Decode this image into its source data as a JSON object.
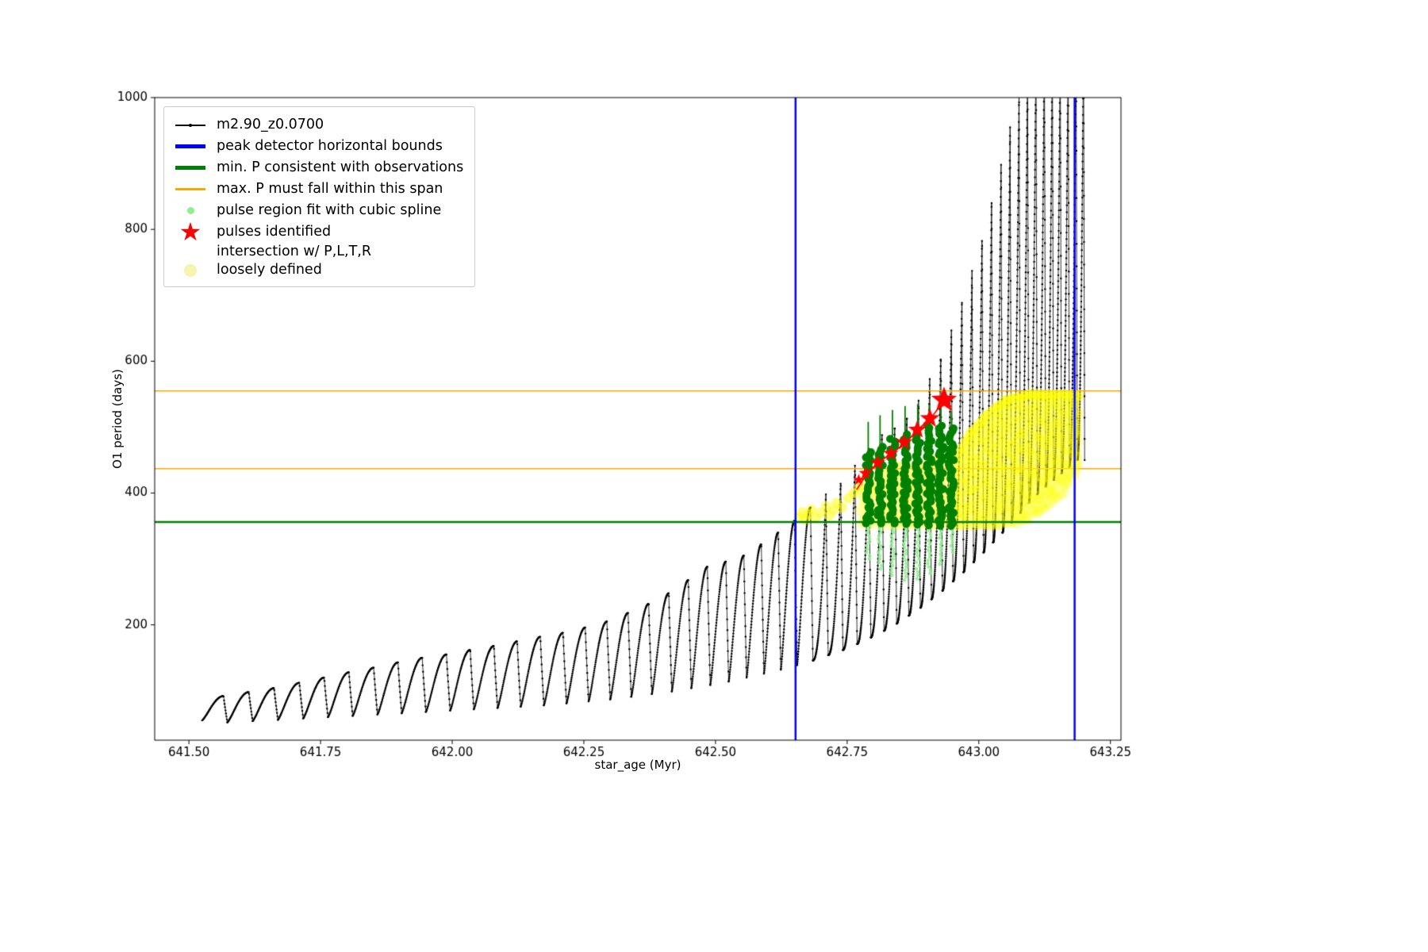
{
  "figure": {
    "background": "#ffffff"
  },
  "chart_data": {
    "type": "line",
    "title": "",
    "xlabel": "star_age (Myr)",
    "ylabel": "O1 period (days)",
    "xlim": [
      641.435,
      643.27
    ],
    "ylim": [
      25,
      1000
    ],
    "grid": false,
    "legend_position": "upper left",
    "x_ticks": [
      {
        "v": 641.5,
        "label": "641.50"
      },
      {
        "v": 641.75,
        "label": "641.75"
      },
      {
        "v": 642.0,
        "label": "642.00"
      },
      {
        "v": 642.25,
        "label": "642.25"
      },
      {
        "v": 642.5,
        "label": "642.50"
      },
      {
        "v": 642.75,
        "label": "642.75"
      },
      {
        "v": 643.0,
        "label": "643.00"
      },
      {
        "v": 643.25,
        "label": "643.25"
      }
    ],
    "y_ticks": [
      {
        "v": 200,
        "label": "200"
      },
      {
        "v": 400,
        "label": "400"
      },
      {
        "v": 600,
        "label": "600"
      },
      {
        "v": 800,
        "label": "800"
      },
      {
        "v": 1000,
        "label": "1000"
      }
    ],
    "legend": [
      {
        "label": "m2.90_z0.0700",
        "marker": "line-dot",
        "color": "#000000"
      },
      {
        "label": "peak detector horizontal bounds",
        "marker": "thick-line",
        "color": "#0000ff"
      },
      {
        "label": "min. P consistent with observations",
        "marker": "thick-line",
        "color": "#008000"
      },
      {
        "label": "max. P must fall within this span",
        "marker": "line",
        "color": "#ffa500"
      },
      {
        "label": "pulse region fit with cubic spline",
        "marker": "dot-small",
        "color": "#90ee90"
      },
      {
        "label": "pulses identified",
        "marker": "star",
        "color": "#ff0000"
      },
      {
        "label": "intersection w/ P,L,T,R\nloosely defined",
        "marker": "dot-large",
        "color": "#f5f5b0"
      }
    ],
    "series_label": "m2.90_z0.0700",
    "series_color": "#000000",
    "pulses_comment": "each item = [x_start_Myr, cycle_width_Myr, min_period_days, peak_period_days]",
    "pulses": [
      [
        641.525,
        0.048,
        55,
        92
      ],
      [
        641.573,
        0.048,
        52,
        98
      ],
      [
        641.621,
        0.048,
        54,
        104
      ],
      [
        641.669,
        0.048,
        56,
        112
      ],
      [
        641.717,
        0.047,
        58,
        120
      ],
      [
        641.764,
        0.047,
        60,
        128
      ],
      [
        641.811,
        0.047,
        62,
        135
      ],
      [
        641.858,
        0.046,
        64,
        143
      ],
      [
        641.904,
        0.046,
        66,
        150
      ],
      [
        641.95,
        0.046,
        68,
        155
      ],
      [
        641.996,
        0.045,
        70,
        162
      ],
      [
        642.041,
        0.045,
        72,
        168
      ],
      [
        642.086,
        0.044,
        74,
        175
      ],
      [
        642.13,
        0.044,
        76,
        182
      ],
      [
        642.174,
        0.043,
        78,
        188
      ],
      [
        642.217,
        0.042,
        81,
        196
      ],
      [
        642.259,
        0.041,
        84,
        205
      ],
      [
        642.3,
        0.04,
        87,
        218
      ],
      [
        642.34,
        0.039,
        91,
        232
      ],
      [
        642.379,
        0.038,
        95,
        248
      ],
      [
        642.417,
        0.037,
        99,
        268
      ],
      [
        642.454,
        0.036,
        104,
        288
      ],
      [
        642.49,
        0.035,
        109,
        296
      ],
      [
        642.525,
        0.034,
        114,
        305
      ],
      [
        642.559,
        0.033,
        120,
        322
      ],
      [
        642.592,
        0.032,
        126,
        340
      ],
      [
        642.624,
        0.031,
        132,
        358
      ],
      [
        642.655,
        0.03,
        139,
        378
      ],
      [
        642.685,
        0.029,
        146,
        398
      ],
      [
        642.714,
        0.028,
        154,
        420
      ],
      [
        642.742,
        0.027,
        162,
        445
      ],
      [
        642.769,
        0.026,
        171,
        468
      ],
      [
        642.795,
        0.025,
        181,
        490
      ],
      [
        642.82,
        0.024,
        191,
        505
      ],
      [
        642.844,
        0.023,
        202,
        520
      ],
      [
        642.867,
        0.022,
        214,
        545
      ],
      [
        642.889,
        0.021,
        226,
        575
      ],
      [
        642.91,
        0.021,
        239,
        610
      ],
      [
        642.931,
        0.02,
        252,
        650
      ],
      [
        642.951,
        0.02,
        266,
        695
      ],
      [
        642.971,
        0.019,
        280,
        740
      ],
      [
        642.99,
        0.019,
        295,
        790
      ],
      [
        643.009,
        0.018,
        310,
        845
      ],
      [
        643.027,
        0.018,
        325,
        900
      ],
      [
        643.045,
        0.017,
        340,
        960
      ],
      [
        643.062,
        0.017,
        355,
        1010
      ],
      [
        643.079,
        0.016,
        370,
        1060
      ],
      [
        643.095,
        0.016,
        385,
        1090
      ],
      [
        643.111,
        0.016,
        398,
        1100
      ],
      [
        643.127,
        0.015,
        410,
        1100
      ],
      [
        643.142,
        0.015,
        420,
        1100
      ],
      [
        643.157,
        0.015,
        430,
        1100
      ],
      [
        643.172,
        0.015,
        440,
        1100
      ],
      [
        643.187,
        0.014,
        450,
        1100
      ]
    ],
    "vlines": {
      "color": "#0000ff",
      "width": 2.5,
      "xs": [
        642.652,
        643.182
      ]
    },
    "hlines": [
      {
        "color": "#ffa500",
        "y": 437,
        "width": 1.5
      },
      {
        "color": "#ffa500",
        "y": 555,
        "width": 1.5
      },
      {
        "color": "#008000",
        "y": 356,
        "width": 2.5
      }
    ],
    "green_columns_comment": "pulse region fit with cubic spline: [x, y_bottom, y_top, tip_of_thin_line]",
    "green_columns_color": "#008000",
    "green_columns": [
      [
        642.79,
        354,
        462,
        508
      ],
      [
        642.8125,
        354,
        472,
        518
      ],
      [
        642.836,
        354,
        482,
        526
      ],
      [
        642.86,
        353,
        490,
        532
      ],
      [
        642.884,
        352,
        497,
        535
      ],
      [
        642.906,
        351,
        503,
        534
      ],
      [
        642.928,
        350,
        505,
        530
      ],
      [
        642.948,
        350,
        500,
        524
      ]
    ],
    "light_green_color": "#90ee90",
    "light_green_trail_bottoms": [
      300,
      285,
      275,
      268,
      270,
      278,
      292,
      310
    ],
    "pulses_identified_color": "#ff0000",
    "pulses_identified_comment": "[x, y, marker_radius_px]",
    "pulses_identified": [
      [
        642.772,
        420,
        7.5
      ],
      [
        642.785,
        430,
        9
      ],
      [
        642.808,
        446,
        10
      ],
      [
        642.833,
        460,
        10
      ],
      [
        642.858,
        477,
        11
      ],
      [
        642.883,
        496,
        12
      ],
      [
        642.907,
        513,
        13
      ],
      [
        642.934,
        541,
        17
      ]
    ],
    "spline_curve": [
      [
        642.768,
        405
      ],
      [
        642.79,
        432
      ],
      [
        642.815,
        450
      ],
      [
        642.84,
        463
      ],
      [
        642.865,
        480
      ],
      [
        642.89,
        500
      ],
      [
        642.915,
        520
      ],
      [
        642.94,
        546
      ]
    ],
    "yellow_color": "#ffff00",
    "yellow_main_region": {
      "x0": 642.952,
      "x1": 643.192,
      "top": [
        [
          642.952,
          450
        ],
        [
          642.98,
          492
        ],
        [
          643.01,
          520
        ],
        [
          643.05,
          545
        ],
        [
          643.09,
          553
        ],
        [
          643.192,
          553
        ]
      ],
      "bottom": [
        [
          642.952,
          352
        ],
        [
          643.02,
          350
        ],
        [
          643.08,
          356
        ],
        [
          643.12,
          372
        ],
        [
          643.16,
          400
        ],
        [
          643.192,
          440
        ]
      ]
    },
    "yellow_under_green_region": {
      "x0": 642.775,
      "x1": 642.952,
      "top": [
        [
          642.775,
          420
        ],
        [
          642.85,
          448
        ],
        [
          642.952,
          455
        ]
      ],
      "bottom": [
        [
          642.775,
          352
        ],
        [
          642.952,
          352
        ]
      ]
    },
    "yellow_sparse_points": [
      [
        642.658,
        363
      ],
      [
        642.664,
        371
      ],
      [
        642.67,
        360
      ],
      [
        642.676,
        368
      ],
      [
        642.682,
        375
      ],
      [
        642.69,
        362
      ],
      [
        642.7,
        370
      ],
      [
        642.71,
        380
      ],
      [
        642.716,
        366
      ],
      [
        642.724,
        374
      ],
      [
        642.73,
        385
      ],
      [
        642.74,
        378
      ],
      [
        642.752,
        392
      ],
      [
        642.762,
        400
      ],
      [
        642.772,
        408
      ]
    ]
  }
}
